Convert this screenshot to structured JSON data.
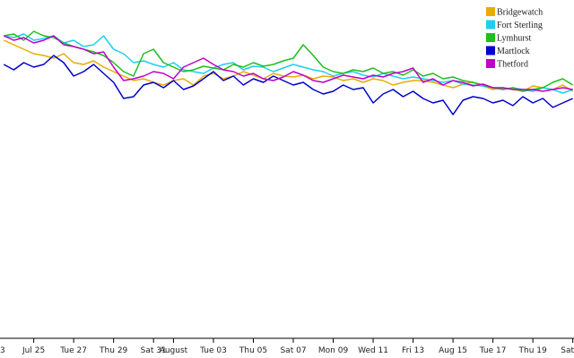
{
  "chart_data": {
    "type": "line",
    "x": [
      0.5,
      1,
      1.5,
      2,
      2.5,
      3,
      3.5,
      4,
      4.5,
      5,
      5.5,
      6,
      6.5,
      7,
      7.5,
      8,
      8.5,
      9,
      9.5,
      10,
      10.5,
      11,
      11.5,
      12,
      12.5,
      13,
      13.5,
      14,
      14.5,
      15,
      15.5,
      16,
      16.5,
      17,
      17.5,
      18,
      18.5,
      19,
      19.5,
      20,
      20.5,
      21,
      21.5,
      22,
      22.5,
      23,
      23.5,
      24,
      24.5,
      25,
      25.5,
      26,
      26.5,
      27,
      27.5,
      28,
      28.5,
      29
    ],
    "xlim": [
      0.31,
      29.06
    ],
    "xticks": [
      {
        "value": 0,
        "label": "3"
      },
      {
        "value": 2,
        "label": "Jul 25"
      },
      {
        "value": 4,
        "label": "Tue 27"
      },
      {
        "value": 6,
        "label": "Thu 29"
      },
      {
        "value": 8,
        "label": "Sat 31"
      },
      {
        "value": 9,
        "label": "August"
      },
      {
        "value": 11,
        "label": "Tue 03"
      },
      {
        "value": 13,
        "label": "Thu 05"
      },
      {
        "value": 15,
        "label": "Sat 07"
      },
      {
        "value": 17,
        "label": "Mon 09"
      },
      {
        "value": 19,
        "label": "Wed 11"
      },
      {
        "value": 21,
        "label": "Fri 13"
      },
      {
        "value": 23,
        "label": "Aug 15"
      },
      {
        "value": 25,
        "label": "Tue 17"
      },
      {
        "value": 27,
        "label": "Thu 19"
      },
      {
        "value": 29,
        "label": "Sat"
      }
    ],
    "ylim": [
      0,
      400
    ],
    "legend": "top-right",
    "series": [
      {
        "name": "Bridgewatch",
        "color": "#e8ac00",
        "values": [
          355,
          350,
          345,
          340,
          338,
          335,
          340,
          330,
          328,
          332,
          325,
          320,
          315,
          310,
          312,
          308,
          305,
          310,
          312,
          305,
          315,
          318,
          312,
          315,
          320,
          316,
          312,
          318,
          315,
          314,
          316,
          312,
          315,
          314,
          310,
          312,
          308,
          312,
          310,
          305,
          308,
          310,
          310,
          308,
          305,
          302,
          306,
          308,
          304,
          300,
          302,
          300,
          298,
          304,
          302,
          300,
          305,
          298
        ]
      },
      {
        "name": "Fort Sterling",
        "color": "#1ccff0",
        "values": [
          360,
          358,
          362,
          355,
          357,
          360,
          352,
          355,
          348,
          350,
          360,
          345,
          340,
          330,
          332,
          328,
          325,
          330,
          322,
          320,
          318,
          324,
          328,
          330,
          322,
          326,
          325,
          320,
          324,
          328,
          325,
          322,
          320,
          315,
          318,
          320,
          316,
          314,
          318,
          315,
          312,
          314,
          312,
          310,
          308,
          310,
          306,
          305,
          304,
          302,
          300,
          302,
          300,
          298,
          302,
          300,
          296,
          300
        ]
      },
      {
        "name": "Lymhurst",
        "color": "#1ebe1e",
        "values": [
          360,
          362,
          355,
          365,
          360,
          358,
          352,
          348,
          345,
          342,
          338,
          330,
          320,
          315,
          340,
          345,
          330,
          325,
          320,
          322,
          326,
          324,
          322,
          328,
          325,
          330,
          326,
          328,
          332,
          335,
          350,
          338,
          325,
          320,
          318,
          322,
          320,
          324,
          318,
          320,
          316,
          322,
          315,
          318,
          312,
          314,
          310,
          308,
          305,
          302,
          300,
          302,
          298,
          300,
          302,
          308,
          312,
          305
        ]
      },
      {
        "name": "Martlock",
        "color": "#0000cc",
        "values": [
          328,
          322,
          330,
          325,
          328,
          338,
          330,
          315,
          320,
          328,
          318,
          308,
          290,
          292,
          305,
          308,
          302,
          310,
          300,
          304,
          312,
          320,
          310,
          315,
          305,
          312,
          308,
          315,
          310,
          305,
          308,
          300,
          295,
          298,
          305,
          300,
          302,
          285,
          295,
          300,
          292,
          298,
          290,
          285,
          288,
          272,
          288,
          292,
          290,
          285,
          288,
          282,
          292,
          285,
          290,
          280,
          285,
          290
        ]
      },
      {
        "name": "Thetford",
        "color": "#c000c8",
        "values": [
          360,
          355,
          358,
          352,
          355,
          360,
          350,
          348,
          345,
          340,
          342,
          325,
          310,
          312,
          315,
          320,
          318,
          312,
          325,
          330,
          335,
          328,
          322,
          320,
          315,
          318,
          312,
          310,
          314,
          320,
          316,
          310,
          308,
          312,
          316,
          314,
          312,
          316,
          314,
          318,
          320,
          324,
          308,
          312,
          305,
          310,
          308,
          304,
          306,
          302,
          302,
          300,
          300,
          300,
          298,
          300,
          302,
          300
        ]
      }
    ]
  }
}
